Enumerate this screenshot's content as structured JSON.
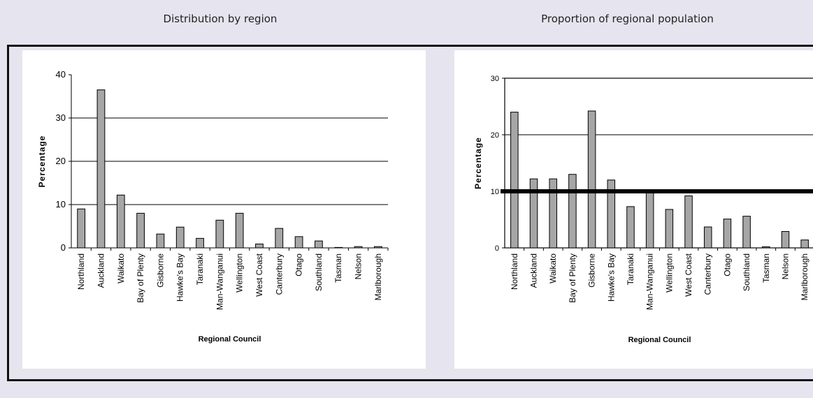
{
  "headings": {
    "left": "Distribution by region",
    "right": "Proportion of regional population"
  },
  "chart_data": [
    {
      "type": "bar",
      "categories": [
        "Northland",
        "Auckland",
        "Waikato",
        "Bay of Plenty",
        "Gisborne",
        "Hawke's Bay",
        "Taranaki",
        "Man-Wanganui",
        "Wellington",
        "West Coast",
        "Canterbury",
        "Otago",
        "Southland",
        "Tasman",
        "Nelson",
        "Marlborough"
      ],
      "values": [
        9,
        36.5,
        12.2,
        8,
        3.2,
        4.8,
        2.2,
        6.4,
        8,
        0.9,
        4.5,
        2.6,
        1.6,
        0.1,
        0.3,
        0.3
      ],
      "xlabel": "Regional Council",
      "ylabel": "Percentage",
      "ylim": [
        0,
        40
      ],
      "yticks": [
        "0",
        "10",
        "20",
        "30",
        "40"
      ],
      "bar_color": "#a6a6a6",
      "grid": true
    },
    {
      "type": "bar",
      "categories": [
        "Northland",
        "Auckland",
        "Waikato",
        "Bay of Plenty",
        "Gisborne",
        "Hawke's Bay",
        "Taranaki",
        "Man-Wanganui",
        "Wellington",
        "West Coast",
        "Canterbury",
        "Otago",
        "Southland",
        "Tasman",
        "Nelson",
        "Marlborough"
      ],
      "values": [
        24,
        12.2,
        12.2,
        13,
        24.2,
        12,
        7.3,
        10,
        6.8,
        9.2,
        3.7,
        5.1,
        5.6,
        0.2,
        2.9,
        1.4
      ],
      "reference_line": 10,
      "xlabel": "Regional Council",
      "ylabel": "Percentage",
      "ylim": [
        0,
        30
      ],
      "yticks": [
        "0",
        "10",
        "20",
        "30"
      ],
      "bar_color": "#a6a6a6",
      "grid": true
    }
  ]
}
